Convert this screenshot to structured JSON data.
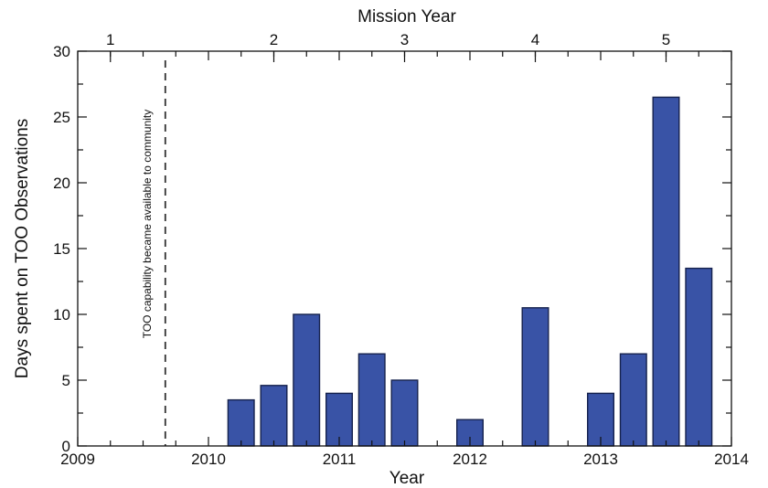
{
  "chart_data": {
    "type": "bar",
    "xlabel": "Year",
    "ylabel": "Days spent on TOO Observations",
    "top_axis_label": "Mission Year",
    "xlim": [
      2009,
      2014
    ],
    "ylim": [
      0,
      30
    ],
    "x_ticks": [
      2009,
      2010,
      2011,
      2012,
      2013,
      2014
    ],
    "y_ticks": [
      0,
      5,
      10,
      15,
      20,
      25,
      30
    ],
    "top_ticks": [
      {
        "label": "1",
        "x": 2009.25
      },
      {
        "label": "2",
        "x": 2010.5
      },
      {
        "label": "3",
        "x": 2011.5
      },
      {
        "label": "4",
        "x": 2012.5
      },
      {
        "label": "5",
        "x": 2013.5
      }
    ],
    "bar_width": 0.2,
    "bars": [
      {
        "x": 2010.25,
        "value": 3.5
      },
      {
        "x": 2010.5,
        "value": 4.6
      },
      {
        "x": 2010.75,
        "value": 10.0
      },
      {
        "x": 2011.0,
        "value": 4.0
      },
      {
        "x": 2011.25,
        "value": 7.0
      },
      {
        "x": 2011.5,
        "value": 5.0
      },
      {
        "x": 2012.0,
        "value": 2.0
      },
      {
        "x": 2012.5,
        "value": 10.5
      },
      {
        "x": 2013.0,
        "value": 4.0
      },
      {
        "x": 2013.25,
        "value": 7.0
      },
      {
        "x": 2013.5,
        "value": 26.5
      },
      {
        "x": 2013.75,
        "value": 13.5
      }
    ],
    "vertical_line": {
      "x": 2009.67,
      "style": "dashed"
    },
    "annotation": "TOO capability became available to community",
    "bar_color": "#3953a6",
    "bar_edge_color": "#16224d",
    "grid": false
  }
}
